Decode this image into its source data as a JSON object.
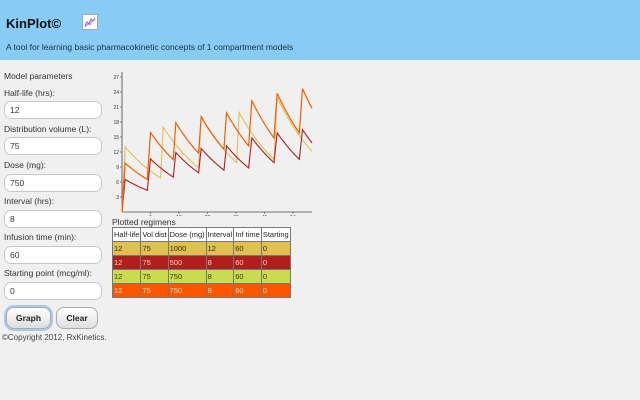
{
  "header": {
    "title": "KinPlot©",
    "logo_icon": "chart-logo-icon",
    "tagline": "A tool for learning basic pharmacokinetic concepts of 1 compartment models",
    "background": "#88ccf5"
  },
  "form": {
    "title": "Model parameters",
    "fields": [
      {
        "label": "Half-life (hrs):",
        "value": "12"
      },
      {
        "label": "Distribution volume (L):",
        "value": "75"
      },
      {
        "label": "Dose (mg):",
        "value": "750"
      },
      {
        "label": "Interval (hrs):",
        "value": "8"
      },
      {
        "label": "Infusion time (min):",
        "value": "60"
      },
      {
        "label": "Starting point (mcg/ml):",
        "value": "0"
      }
    ],
    "graph_label": "Graph",
    "clear_label": "Clear"
  },
  "footer": {
    "copyright": "©Copyright 2012, RxKinetics."
  },
  "chart_data": {
    "type": "line",
    "title": "",
    "xlabel": "",
    "ylabel": "",
    "x_ticks": [
      9,
      18,
      27,
      36,
      45,
      54
    ],
    "y_ticks": [
      3,
      6,
      9,
      12,
      15,
      18,
      21,
      24,
      27
    ],
    "xlim": [
      0,
      60
    ],
    "ylim": [
      0,
      28
    ],
    "grid": false,
    "series": [
      {
        "color": "#e0c050",
        "regimen": {
          "half_life": 12,
          "volume": 75,
          "dose": 1000,
          "interval": 12,
          "infusion_min": 60,
          "start": 0
        }
      },
      {
        "color": "#b01e1e",
        "regimen": {
          "half_life": 12,
          "volume": 75,
          "dose": 500,
          "interval": 8,
          "infusion_min": 60,
          "start": 0
        }
      },
      {
        "color": "#c0d040",
        "regimen": {
          "half_life": 12,
          "volume": 75,
          "dose": 750,
          "interval": 8,
          "infusion_min": 60,
          "start": 0
        }
      },
      {
        "color": "#ff5500",
        "regimen": {
          "half_life": 12,
          "volume": 75,
          "dose": 750,
          "interval": 8,
          "infusion_min": 60,
          "start": 0
        }
      }
    ]
  },
  "regimens": {
    "title": "Plotted regimens",
    "headers": [
      "Half-life",
      "Vol dist",
      "Dose (mg)",
      "Interval",
      "Inf time",
      "Starting"
    ],
    "rows": [
      {
        "cells": [
          "12",
          "75",
          "1000",
          "12",
          "60",
          "0"
        ],
        "bg": "#e0c050",
        "fg": "#3a2e00"
      },
      {
        "cells": [
          "12",
          "75",
          "500",
          "8",
          "60",
          "0"
        ],
        "bg": "#b01e1e",
        "fg": "#ffd0c0"
      },
      {
        "cells": [
          "12",
          "75",
          "750",
          "8",
          "60",
          "0"
        ],
        "bg": "#c8dc50",
        "fg": "#3a4200"
      },
      {
        "cells": [
          "12",
          "75",
          "750",
          "8",
          "60",
          "0"
        ],
        "bg": "#ff5500",
        "fg": "#ffe0c0"
      }
    ]
  }
}
